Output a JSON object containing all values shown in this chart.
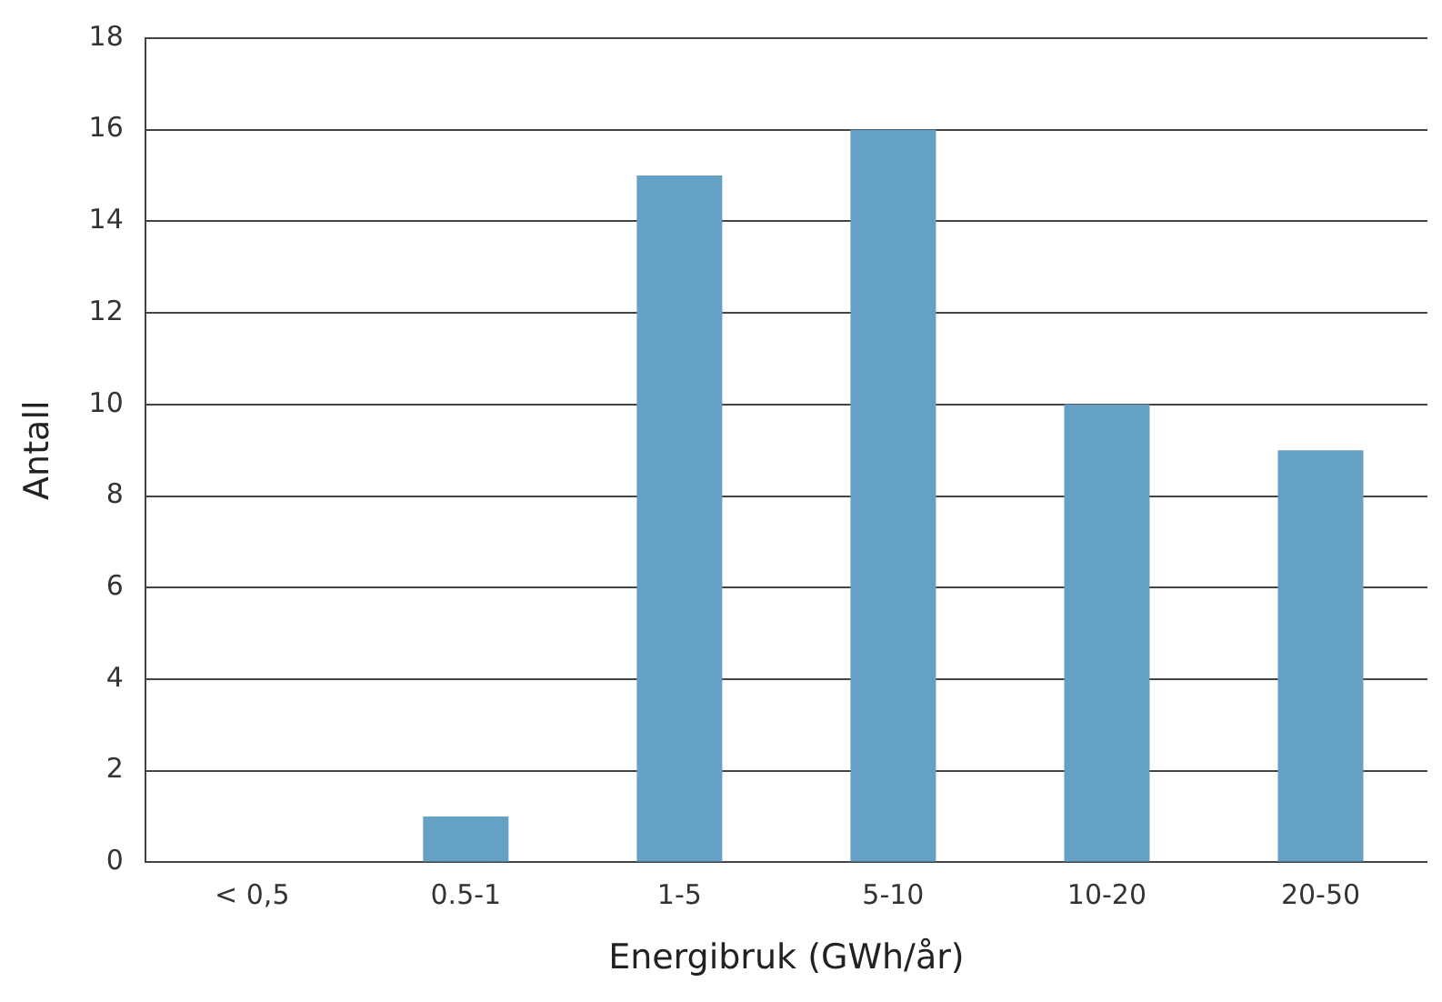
{
  "chart_data": {
    "type": "bar",
    "xlabel": "Energibruk (GWh/år)",
    "ylabel": "Antall",
    "categories": [
      "< 0,5",
      "0.5-1",
      "1-5",
      "5-10",
      "10-20",
      "20-50"
    ],
    "values": [
      0,
      1,
      15,
      16,
      10,
      9
    ],
    "color": "#65a1c5",
    "ylim": [
      0,
      18
    ],
    "yticks": [
      0,
      2,
      4,
      6,
      8,
      10,
      12,
      14,
      16,
      18
    ],
    "grid": "y"
  }
}
